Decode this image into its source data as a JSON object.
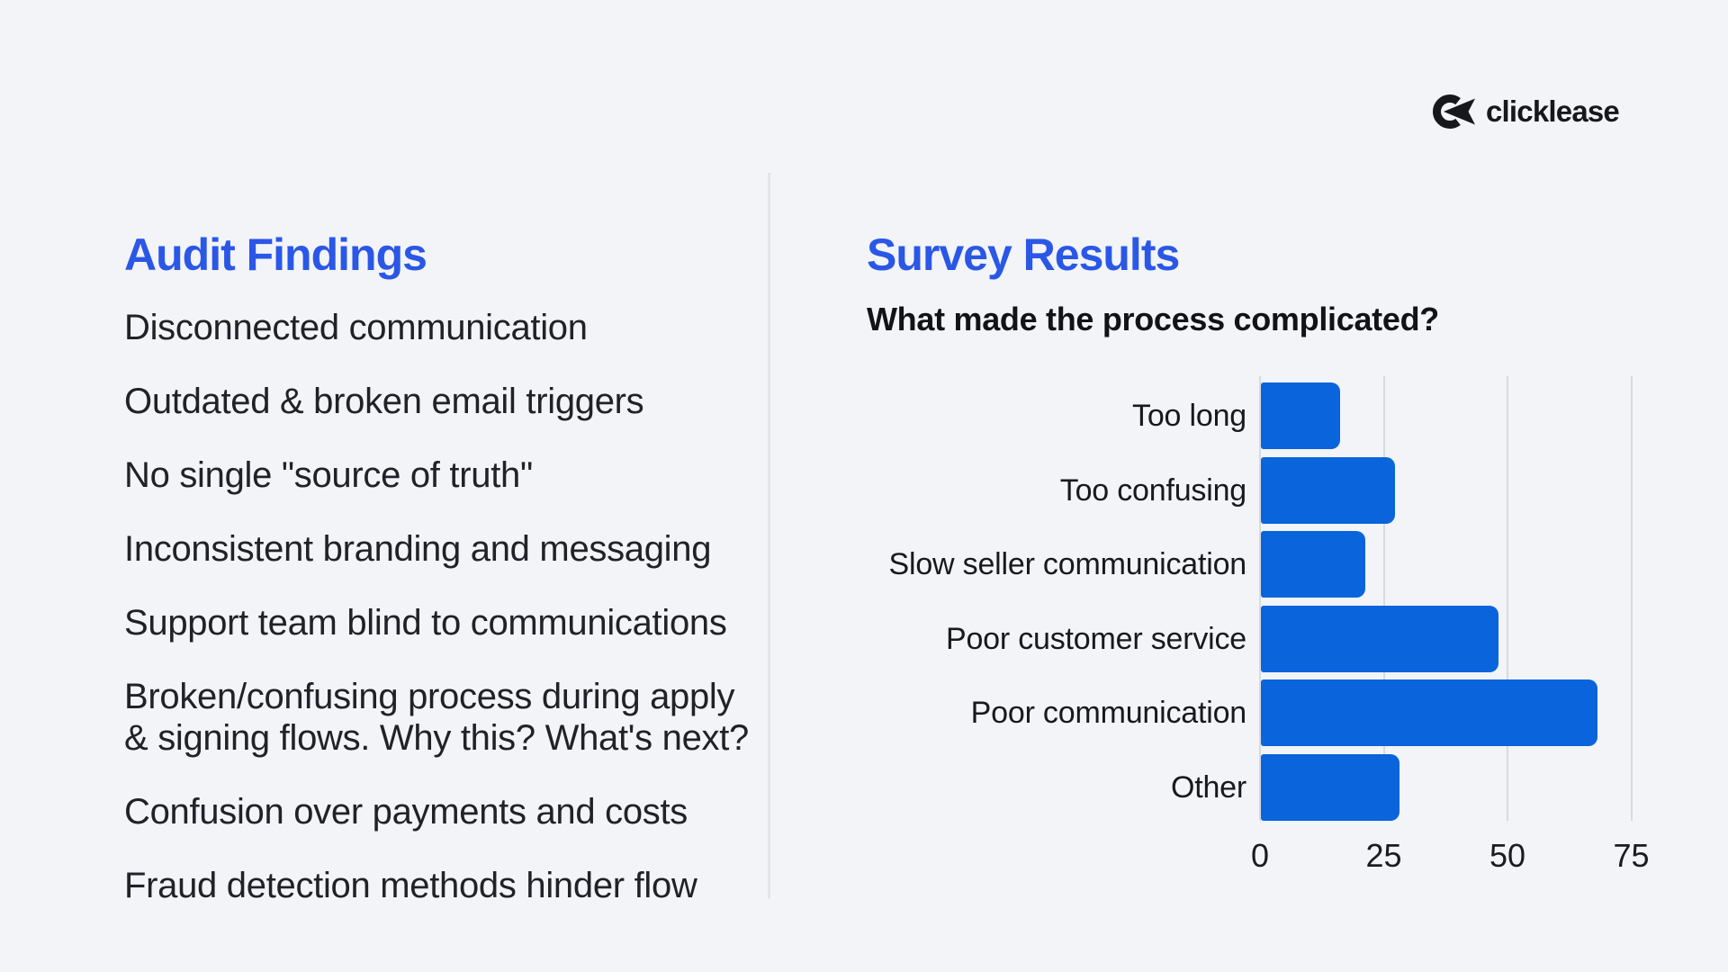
{
  "colors": {
    "background": "#f2f4f8",
    "heading_blue": "#2b57e6",
    "bar_blue": "#0a64dc",
    "gridline": "#d8dade",
    "divider": "#e3e5e9",
    "logo_dark": "#17181c",
    "body_text": "#202227"
  },
  "logo": {
    "text": "clicklease"
  },
  "audit": {
    "title": "Audit Findings",
    "items": [
      "Disconnected communication",
      "Outdated & broken email triggers",
      "No single \"source of truth\"",
      "Inconsistent branding and messaging",
      "Support team blind to communications",
      "Broken/confusing process during apply & signing flows. Why this? What's next?",
      "Confusion over payments and costs",
      "Fraud detection methods hinder flow"
    ]
  },
  "survey": {
    "title": "Survey Results"
  },
  "chart_data": {
    "type": "bar",
    "orientation": "horizontal",
    "title": "What made the process complicated?",
    "categories": [
      "Too long",
      "Too confusing",
      "Slow seller communication",
      "Poor customer service",
      "Poor communication",
      "Other"
    ],
    "values": [
      16,
      27,
      21,
      48,
      68,
      28
    ],
    "xlabel": "",
    "ylabel": "",
    "xticks": [
      0,
      25,
      50,
      75
    ],
    "xlim": [
      0,
      80
    ],
    "grid": true,
    "legend": false,
    "bar_color": "#0a64dc"
  }
}
